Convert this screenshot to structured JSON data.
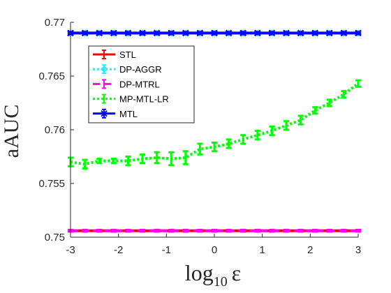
{
  "chart_data": {
    "type": "line",
    "xlabel": "log",
    "xlabel_sub": "10",
    "xlabel_sym": "ε",
    "ylabel": "aAUC",
    "xlim": [
      -3,
      3
    ],
    "ylim": [
      0.75,
      0.77
    ],
    "xticks": [
      -3,
      -2,
      -1,
      0,
      1,
      2,
      3
    ],
    "xtick_labels": [
      "-3",
      "-2",
      "-1",
      "0",
      "1",
      "2",
      "3"
    ],
    "yticks": [
      0.75,
      0.755,
      0.76,
      0.765,
      0.77
    ],
    "ytick_labels": [
      "0.75",
      "0.755",
      "0.76",
      "0.765",
      "0.77"
    ],
    "grid": false,
    "legend_position": "top-left",
    "x": [
      -3,
      -2.7,
      -2.4,
      -2.1,
      -1.8,
      -1.5,
      -1.2,
      -0.9,
      -0.6,
      -0.3,
      0,
      0.3,
      0.6,
      0.9,
      1.2,
      1.5,
      1.8,
      2.1,
      2.4,
      2.7,
      3
    ],
    "series": [
      {
        "name": "STL",
        "color": "#ff0000",
        "dash": "solid",
        "marker": "none",
        "values": [
          0.7506,
          0.7506,
          0.7506,
          0.7506,
          0.7506,
          0.7506,
          0.7506,
          0.7506,
          0.7506,
          0.7506,
          0.7506,
          0.7506,
          0.7506,
          0.7506,
          0.7506,
          0.7506,
          0.7506,
          0.7506,
          0.7506,
          0.7506,
          0.7506
        ],
        "error": [
          8e-05,
          8e-05,
          8e-05,
          8e-05,
          8e-05,
          8e-05,
          8e-05,
          8e-05,
          8e-05,
          8e-05,
          8e-05,
          8e-05,
          8e-05,
          8e-05,
          8e-05,
          8e-05,
          8e-05,
          8e-05,
          8e-05,
          8e-05,
          8e-05
        ]
      },
      {
        "name": "DP-AGGR",
        "color": "#00ffff",
        "dash": "dotted",
        "marker": "diamond",
        "values": [
          0.769,
          0.769,
          0.769,
          0.769,
          0.769,
          0.769,
          0.769,
          0.769,
          0.769,
          0.769,
          0.769,
          0.769,
          0.769,
          0.769,
          0.769,
          0.769,
          0.769,
          0.769,
          0.769,
          0.769,
          0.769
        ],
        "error": [
          0.0001,
          0.0001,
          0.0001,
          0.0001,
          0.0001,
          0.0001,
          0.0001,
          0.0001,
          0.0001,
          0.0001,
          0.0001,
          0.0001,
          0.0001,
          0.0001,
          0.0001,
          0.0001,
          0.0001,
          0.0001,
          0.0001,
          0.0001,
          0.0001
        ]
      },
      {
        "name": "DP-MTRL",
        "color": "#ff00ff",
        "dash": "dashed",
        "marker": "none",
        "values": [
          0.7506,
          0.7506,
          0.7506,
          0.7506,
          0.7506,
          0.7506,
          0.7506,
          0.7506,
          0.7506,
          0.7506,
          0.7506,
          0.7506,
          0.7506,
          0.7506,
          0.7506,
          0.7506,
          0.7506,
          0.7506,
          0.7506,
          0.7506,
          0.7506
        ],
        "error": [
          8e-05,
          8e-05,
          8e-05,
          8e-05,
          8e-05,
          8e-05,
          8e-05,
          8e-05,
          8e-05,
          8e-05,
          8e-05,
          8e-05,
          8e-05,
          8e-05,
          8e-05,
          8e-05,
          8e-05,
          8e-05,
          8e-05,
          8e-05,
          8e-05
        ]
      },
      {
        "name": "MP-MTL-LR",
        "color": "#00ff00",
        "dash": "dotted",
        "marker": "none",
        "values": [
          0.757,
          0.7568,
          0.7571,
          0.7571,
          0.7571,
          0.7573,
          0.7574,
          0.7573,
          0.7574,
          0.7582,
          0.7584,
          0.7587,
          0.7591,
          0.7595,
          0.7599,
          0.7604,
          0.7609,
          0.7618,
          0.7625,
          0.7633,
          0.7643
        ],
        "error": [
          0.0004,
          0.0004,
          0.0002,
          0.0002,
          0.0004,
          0.0004,
          0.0005,
          0.0006,
          0.0006,
          0.0005,
          0.0004,
          0.0004,
          0.0004,
          0.0004,
          0.0004,
          0.0004,
          0.0004,
          0.0003,
          0.0003,
          0.0003,
          0.0003
        ]
      },
      {
        "name": "MTL",
        "color": "#0000ff",
        "dash": "solid",
        "marker": "x",
        "values": [
          0.769,
          0.769,
          0.769,
          0.769,
          0.769,
          0.769,
          0.769,
          0.769,
          0.769,
          0.769,
          0.769,
          0.769,
          0.769,
          0.769,
          0.769,
          0.769,
          0.769,
          0.769,
          0.769,
          0.769,
          0.769
        ],
        "error": [
          0.0001,
          0.0001,
          0.0001,
          0.0001,
          0.0001,
          0.0001,
          0.0001,
          0.0001,
          0.0001,
          0.0001,
          0.0001,
          0.0001,
          0.0001,
          0.0001,
          0.0001,
          0.0001,
          0.0001,
          0.0001,
          0.0001,
          0.0001,
          0.0001
        ]
      }
    ]
  }
}
